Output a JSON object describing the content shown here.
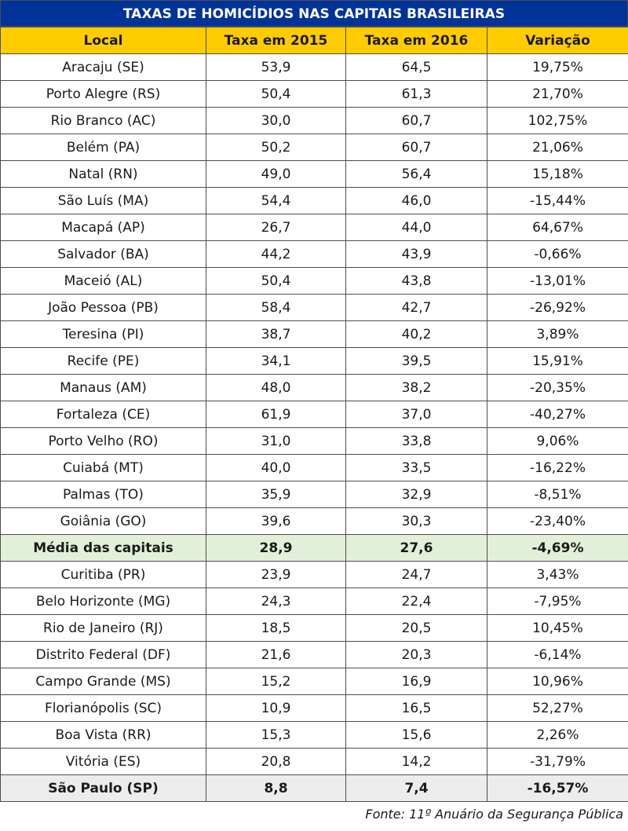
{
  "title": "TAXAS DE HOMICÍDIOS NAS CAPITAIS BRASILEIRAS",
  "headers": [
    "Local",
    "Taxa em 2015",
    "Taxa em 2016",
    "Variação"
  ],
  "rows": [
    [
      "Aracaju (SE)",
      "53,9",
      "64,5",
      "19,75%"
    ],
    [
      "Porto Alegre (RS)",
      "50,4",
      "61,3",
      "21,70%"
    ],
    [
      "Rio Branco (AC)",
      "30,0",
      "60,7",
      "102,75%"
    ],
    [
      "Belém (PA)",
      "50,2",
      "60,7",
      "21,06%"
    ],
    [
      "Natal (RN)",
      "49,0",
      "56,4",
      "15,18%"
    ],
    [
      "São Luís (MA)",
      "54,4",
      "46,0",
      "-15,44%"
    ],
    [
      "Macapá (AP)",
      "26,7",
      "44,0",
      "64,67%"
    ],
    [
      "Salvador (BA)",
      "44,2",
      "43,9",
      "-0,66%"
    ],
    [
      "Maceió (AL)",
      "50,4",
      "43,8",
      "-13,01%"
    ],
    [
      "João Pessoa (PB)",
      "58,4",
      "42,7",
      "-26,92%"
    ],
    [
      "Teresina (PI)",
      "38,7",
      "40,2",
      "3,89%"
    ],
    [
      "Recife (PE)",
      "34,1",
      "39,5",
      "15,91%"
    ],
    [
      "Manaus (AM)",
      "48,0",
      "38,2",
      "-20,35%"
    ],
    [
      "Fortaleza (CE)",
      "61,9",
      "37,0",
      "-40,27%"
    ],
    [
      "Porto Velho (RO)",
      "31,0",
      "33,8",
      "9,06%"
    ],
    [
      "Cuiabá (MT)",
      "40,0",
      "33,5",
      "-16,22%"
    ],
    [
      "Palmas (TO)",
      "35,9",
      "32,9",
      "-8,51%"
    ],
    [
      "Goiânia (GO)",
      "39,6",
      "30,3",
      "-23,40%"
    ],
    [
      "Média das capitais",
      "28,9",
      "27,6",
      "-4,69%"
    ],
    [
      "Curitiba (PR)",
      "23,9",
      "24,7",
      "3,43%"
    ],
    [
      "Belo Horizonte (MG)",
      "24,3",
      "22,4",
      "-7,95%"
    ],
    [
      "Rio de Janeiro (RJ)",
      "18,5",
      "20,5",
      "10,45%"
    ],
    [
      "Distrito Federal (DF)",
      "21,6",
      "20,3",
      "-6,14%"
    ],
    [
      "Campo Grande (MS)",
      "15,2",
      "16,9",
      "10,96%"
    ],
    [
      "Florianópolis (SC)",
      "10,9",
      "16,5",
      "52,27%"
    ],
    [
      "Boa Vista (RR)",
      "15,3",
      "15,6",
      "2,26%"
    ],
    [
      "Vitória (ES)",
      "20,8",
      "14,2",
      "-31,79%"
    ],
    [
      "São Paulo (SP)",
      "8,8",
      "7,4",
      "-16,57%"
    ]
  ],
  "highlight_row": 18,
  "footer_row": 27,
  "source": "Fonte: 11º Anuário da Segurança Pública",
  "colors": {
    "title_bg": "#003399",
    "header_bg": "#ffcc00",
    "highlight_bg": "#e3f0d9",
    "footer_bg": "#ececec"
  }
}
